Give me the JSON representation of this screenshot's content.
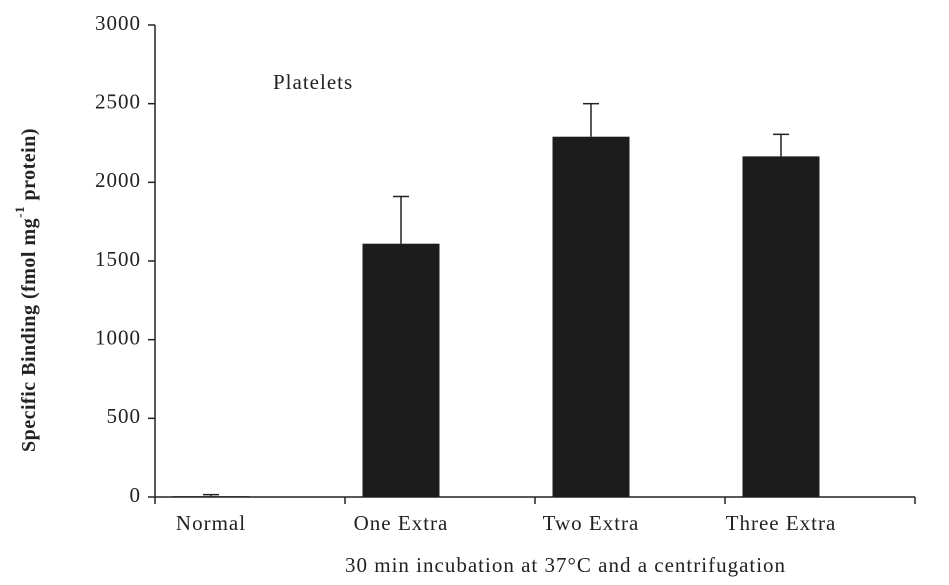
{
  "chart_data": {
    "type": "bar",
    "annotation": "Platelets",
    "y_label": [
      "Specific Binding (fmol mg",
      "-1",
      " protein)"
    ],
    "x_label": "30 min incubation at 37°C and a centrifugation",
    "categories": [
      "Normal",
      "One Extra",
      "Two Extra",
      "Three Extra"
    ],
    "values": [
      5,
      1610,
      2290,
      2165
    ],
    "errors": [
      10,
      300,
      210,
      140
    ],
    "color": "#1c1c1c",
    "ylim": [
      0,
      3000
    ],
    "yticks": [
      0,
      500,
      1000,
      1500,
      2000,
      2500,
      3000
    ],
    "grid": false
  }
}
